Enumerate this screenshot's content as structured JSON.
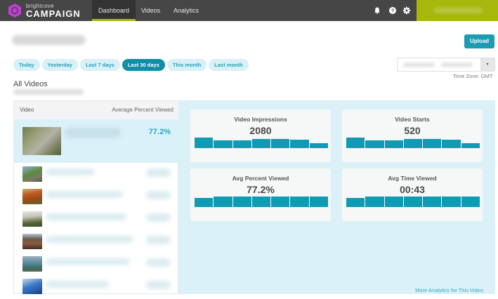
{
  "header": {
    "logo_small": "brightcove",
    "logo_big": "CAMPAIGN",
    "nav": [
      {
        "label": "Dashboard",
        "active": true
      },
      {
        "label": "Videos",
        "active": false
      },
      {
        "label": "Analytics",
        "active": false
      }
    ],
    "icons": [
      "bell-icon",
      "help-icon",
      "gear-icon"
    ],
    "accent_color": "#a8b70c"
  },
  "toolbar": {
    "upload_label": "Upload"
  },
  "date_filters": [
    {
      "label": "Today",
      "active": false
    },
    {
      "label": "Yesterday",
      "active": false
    },
    {
      "label": "Last 7 days",
      "active": false
    },
    {
      "label": "Last 30 days",
      "active": true
    },
    {
      "label": "This month",
      "active": false
    },
    {
      "label": "Last month",
      "active": false
    }
  ],
  "date_range": {
    "caret": "▾",
    "timezone_label": "Time Zone: GMT"
  },
  "section": {
    "title": "All Videos"
  },
  "video_list": {
    "col_video": "Video",
    "col_metric": "Average Percent Viewed",
    "selected": {
      "value": "77.2%"
    }
  },
  "metrics": [
    {
      "title": "Video Impressions",
      "value": "2080",
      "bars": [
        100,
        75,
        75,
        90,
        90,
        80,
        45
      ]
    },
    {
      "title": "Video Starts",
      "value": "520",
      "bars": [
        100,
        75,
        75,
        90,
        90,
        80,
        45
      ]
    },
    {
      "title": "Avg Percent Viewed",
      "value": "77.2%",
      "bars": [
        90,
        100,
        100,
        100,
        100,
        100,
        100
      ]
    },
    {
      "title": "Avg Time Viewed",
      "value": "00:43",
      "bars": [
        90,
        100,
        100,
        100,
        100,
        100,
        100
      ]
    }
  ],
  "footer": {
    "more_link": "More Analytics for This Video"
  },
  "colors": {
    "primary": "#0e9bb3",
    "panel_bg": "#daf1f8",
    "topbar": "#464646"
  }
}
